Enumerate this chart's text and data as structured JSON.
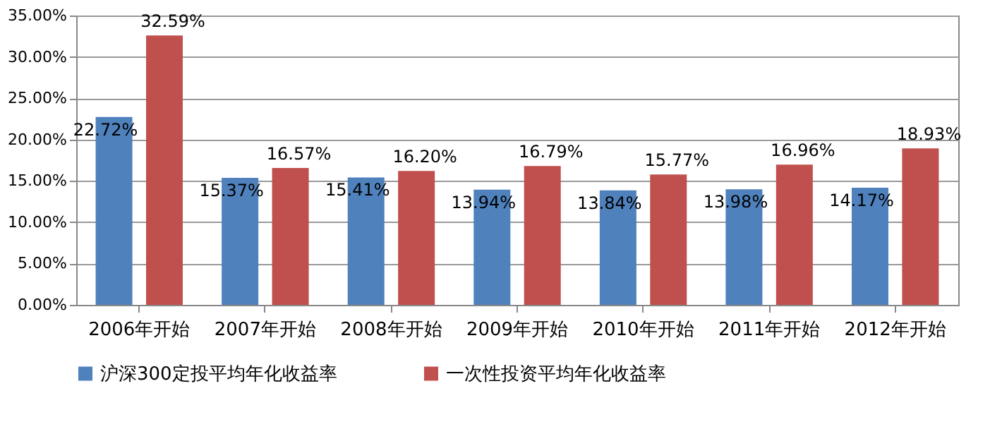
{
  "chart_data": {
    "type": "bar",
    "categories": [
      "2006年开始",
      "2007年开始",
      "2008年开始",
      "2009年开始",
      "2010年开始",
      "2011年开始",
      "2012年开始"
    ],
    "series": [
      {
        "name": "沪深300定投平均年化收益率",
        "color": "#4f81bd",
        "values": [
          22.72,
          15.37,
          15.41,
          13.94,
          13.84,
          13.98,
          14.17
        ],
        "value_labels": [
          "22.72%",
          "15.37%",
          "15.41%",
          "13.94%",
          "13.84%",
          "13.98%",
          "14.17%"
        ]
      },
      {
        "name": "一次性投资平均年化收益率",
        "color": "#c0504d",
        "values": [
          32.59,
          16.57,
          16.2,
          16.79,
          15.77,
          16.96,
          18.93
        ],
        "value_labels": [
          "32.59%",
          "16.57%",
          "16.20%",
          "16.79%",
          "15.77%",
          "16.96%",
          "18.93%"
        ]
      }
    ],
    "ylim": [
      0,
      35
    ],
    "yticks": [
      {
        "value": 0,
        "label": "0.00%"
      },
      {
        "value": 5,
        "label": "5.00%"
      },
      {
        "value": 10,
        "label": "10.00%"
      },
      {
        "value": 15,
        "label": "15.00%"
      },
      {
        "value": 20,
        "label": "20.00%"
      },
      {
        "value": 25,
        "label": "25.00%"
      },
      {
        "value": 30,
        "label": "30.00%"
      },
      {
        "value": 35,
        "label": "35.00%"
      }
    ],
    "grid": "y",
    "legend": "bottom"
  }
}
